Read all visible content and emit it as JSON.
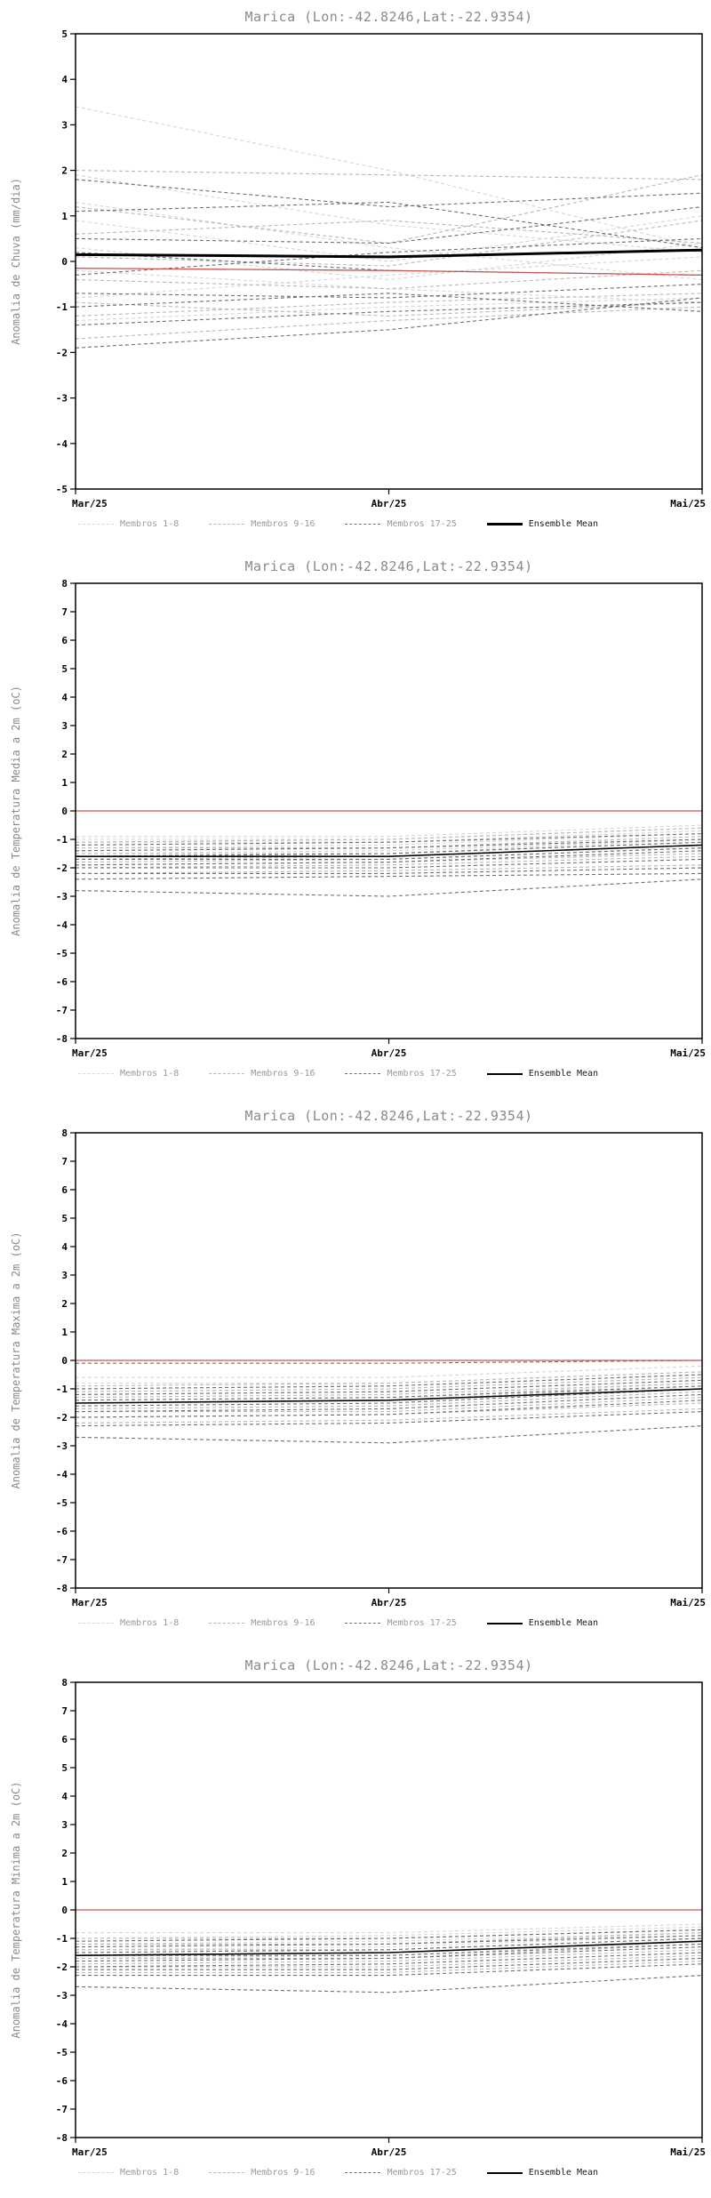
{
  "styles": {
    "background": "#ffffff",
    "axis_color": "#000000",
    "title_color": "#8a8a8a",
    "ylabel_color": "#8a8a8a",
    "legend_text_color": "#9a9a9a",
    "reference_line_color": "#cc544e"
  },
  "chart_data": [
    {
      "type": "line",
      "title": "Marica (Lon:-42.8246,Lat:-22.9354)",
      "ylabel": "Anomalia de Chuva (mm/dia)",
      "ylim": [
        -5,
        5
      ],
      "ytick_step": 1,
      "x_labels": [
        "Mar/25",
        "Abr/25",
        "Mai/25"
      ],
      "legend": [
        {
          "label": "Membros 1-8",
          "color": "#d6d6d6",
          "count": 8,
          "dash": true,
          "width": 1
        },
        {
          "label": "Membros 9-16",
          "color": "#b8b8b8",
          "count": 8,
          "dash": true,
          "width": 1
        },
        {
          "label": "Membros 17-25",
          "color": "#6f6f6f",
          "count": 9,
          "dash": true,
          "width": 1
        },
        {
          "label": "Ensemble Mean",
          "color": "#000000",
          "dash": false,
          "width": 3
        }
      ],
      "members": [
        [
          3.4,
          2.0,
          0.3
        ],
        [
          1.9,
          0.8,
          0.2
        ],
        [
          1.3,
          0.3,
          -0.4
        ],
        [
          0.9,
          0.0,
          1.0
        ],
        [
          0.3,
          -0.4,
          0.4
        ],
        [
          -0.2,
          -0.6,
          -0.9
        ],
        [
          -0.8,
          -0.3,
          0.1
        ],
        [
          -1.3,
          -1.0,
          -0.8
        ],
        [
          2.0,
          1.9,
          1.8
        ],
        [
          1.2,
          0.4,
          1.9
        ],
        [
          0.6,
          0.9,
          0.4
        ],
        [
          0.1,
          -0.1,
          0.9
        ],
        [
          -0.4,
          -0.6,
          -0.2
        ],
        [
          -0.9,
          -1.2,
          -0.9
        ],
        [
          -1.2,
          -0.9,
          -0.7
        ],
        [
          -1.7,
          -1.3,
          -1.0
        ],
        [
          1.8,
          1.2,
          1.5
        ],
        [
          1.1,
          1.3,
          0.3
        ],
        [
          0.5,
          0.4,
          1.2
        ],
        [
          0.2,
          -0.2,
          -0.3
        ],
        [
          -0.3,
          0.2,
          0.5
        ],
        [
          -0.7,
          -0.8,
          -0.5
        ],
        [
          -1.0,
          -0.7,
          -1.1
        ],
        [
          -1.4,
          -1.1,
          -0.9
        ],
        [
          -1.9,
          -1.5,
          -0.8
        ]
      ],
      "ensemble_mean": {
        "color": "#000000",
        "width": 3,
        "values": [
          0.15,
          0.1,
          0.25
        ]
      },
      "reference_line": {
        "color": "#cc544e",
        "width": 1.3,
        "values": [
          -0.15,
          -0.2,
          -0.3
        ]
      }
    },
    {
      "type": "line",
      "title": "Marica (Lon:-42.8246,Lat:-22.9354)",
      "ylabel": "Anomalia de Temperatura Media a 2m (oC)",
      "ylim": [
        -8,
        8
      ],
      "ytick_step": 1,
      "x_labels": [
        "Mar/25",
        "Abr/25",
        "Mai/25"
      ],
      "legend": [
        {
          "label": "Membros 1-8",
          "color": "#d6d6d6",
          "count": 8,
          "dash": true,
          "width": 1
        },
        {
          "label": "Membros 9-16",
          "color": "#b8b8b8",
          "count": 8,
          "dash": true,
          "width": 1
        },
        {
          "label": "Membros 17-25",
          "color": "#6f6f6f",
          "count": 9,
          "dash": true,
          "width": 1
        },
        {
          "label": "Ensemble Mean",
          "color": "#000000",
          "dash": false,
          "width": 2
        }
      ],
      "members": [
        [
          -0.9,
          -0.9,
          -0.5
        ],
        [
          -1.0,
          -1.0,
          -0.6
        ],
        [
          -1.1,
          -1.1,
          -0.7
        ],
        [
          -1.2,
          -1.1,
          -0.7
        ],
        [
          -1.3,
          -1.2,
          -0.8
        ],
        [
          -1.4,
          -1.3,
          -0.9
        ],
        [
          -1.5,
          -1.4,
          -1.0
        ],
        [
          -1.6,
          -1.5,
          -1.0
        ],
        [
          -1.1,
          -1.0,
          -0.6
        ],
        [
          -1.3,
          -1.3,
          -0.9
        ],
        [
          -1.5,
          -1.5,
          -1.1
        ],
        [
          -1.7,
          -1.6,
          -1.2
        ],
        [
          -1.8,
          -1.7,
          -1.3
        ],
        [
          -1.9,
          -1.8,
          -1.5
        ],
        [
          -2.0,
          -1.9,
          -1.6
        ],
        [
          -2.2,
          -2.1,
          -1.9
        ],
        [
          -1.2,
          -1.1,
          -0.8
        ],
        [
          -1.4,
          -1.3,
          -1.0
        ],
        [
          -1.6,
          -1.5,
          -1.1
        ],
        [
          -1.7,
          -1.7,
          -1.3
        ],
        [
          -1.9,
          -1.8,
          -1.4
        ],
        [
          -2.0,
          -2.0,
          -1.7
        ],
        [
          -2.2,
          -2.2,
          -2.0
        ],
        [
          -2.4,
          -2.3,
          -2.2
        ],
        [
          -2.8,
          -3.0,
          -2.4
        ]
      ],
      "ensemble_mean": {
        "color": "#000000",
        "width": 1.6,
        "values": [
          -1.6,
          -1.6,
          -1.2
        ]
      },
      "reference_line": {
        "color": "#cc544e",
        "width": 1.3,
        "values": [
          0,
          0,
          0
        ]
      }
    },
    {
      "type": "line",
      "title": "Marica (Lon:-42.8246,Lat:-22.9354)",
      "ylabel": "Anomalia de Temperatura Maxima a 2m (oC)",
      "ylim": [
        -8,
        8
      ],
      "ytick_step": 1,
      "x_labels": [
        "Mar/25",
        "Abr/25",
        "Mai/25"
      ],
      "legend": [
        {
          "label": "Membros 1-8",
          "color": "#d6d6d6",
          "count": 8,
          "dash": true,
          "width": 1
        },
        {
          "label": "Membros 9-16",
          "color": "#b8b8b8",
          "count": 8,
          "dash": true,
          "width": 1
        },
        {
          "label": "Membros 17-25",
          "color": "#6f6f6f",
          "count": 9,
          "dash": true,
          "width": 1
        },
        {
          "label": "Ensemble Mean",
          "color": "#000000",
          "dash": false,
          "width": 2
        }
      ],
      "members": [
        [
          -0.6,
          -0.6,
          -0.2
        ],
        [
          -0.8,
          -0.8,
          -0.4
        ],
        [
          -1.0,
          -0.9,
          -0.5
        ],
        [
          -1.1,
          -1.0,
          -0.6
        ],
        [
          -1.2,
          -1.1,
          -0.7
        ],
        [
          -1.4,
          -1.3,
          -0.8
        ],
        [
          -1.5,
          -1.4,
          -1.0
        ],
        [
          -1.7,
          -1.6,
          -1.1
        ],
        [
          -0.9,
          -0.8,
          -0.4
        ],
        [
          -1.1,
          -1.0,
          -0.6
        ],
        [
          -1.3,
          -1.2,
          -0.8
        ],
        [
          -1.5,
          -1.4,
          -0.9
        ],
        [
          -1.7,
          -1.6,
          -1.1
        ],
        [
          -1.8,
          -1.8,
          -1.3
        ],
        [
          -2.0,
          -1.9,
          -1.5
        ],
        [
          -2.2,
          -2.1,
          -1.7
        ],
        [
          -0.1,
          -0.1,
          0.0
        ],
        [
          -1.0,
          -0.9,
          -0.5
        ],
        [
          -1.2,
          -1.1,
          -0.7
        ],
        [
          -1.4,
          -1.3,
          -0.9
        ],
        [
          -1.6,
          -1.5,
          -1.0
        ],
        [
          -1.8,
          -1.7,
          -1.2
        ],
        [
          -2.0,
          -1.9,
          -1.4
        ],
        [
          -2.3,
          -2.2,
          -1.8
        ],
        [
          -2.7,
          -2.9,
          -2.3
        ]
      ],
      "ensemble_mean": {
        "color": "#000000",
        "width": 1.6,
        "values": [
          -1.5,
          -1.4,
          -1.0
        ]
      },
      "reference_line": {
        "color": "#cc544e",
        "width": 1.3,
        "values": [
          0,
          0,
          0
        ]
      }
    },
    {
      "type": "line",
      "title": "Marica (Lon:-42.8246,Lat:-22.9354)",
      "ylabel": "Anomalia de Temperatura Minima a 2m (oC)",
      "ylim": [
        -8,
        8
      ],
      "ytick_step": 1,
      "x_labels": [
        "Mar/25",
        "Abr/25",
        "Mai/25"
      ],
      "legend": [
        {
          "label": "Membros 1-8",
          "color": "#d6d6d6",
          "count": 8,
          "dash": true,
          "width": 1
        },
        {
          "label": "Membros 9-16",
          "color": "#b8b8b8",
          "count": 8,
          "dash": true,
          "width": 1
        },
        {
          "label": "Membros 17-25",
          "color": "#6f6f6f",
          "count": 9,
          "dash": true,
          "width": 1
        },
        {
          "label": "Ensemble Mean",
          "color": "#000000",
          "dash": false,
          "width": 2
        }
      ],
      "members": [
        [
          -0.8,
          -0.8,
          -0.5
        ],
        [
          -1.0,
          -0.9,
          -0.6
        ],
        [
          -1.1,
          -1.0,
          -0.7
        ],
        [
          -1.2,
          -1.1,
          -0.8
        ],
        [
          -1.3,
          -1.2,
          -0.8
        ],
        [
          -1.4,
          -1.3,
          -0.9
        ],
        [
          -1.5,
          -1.4,
          -1.0
        ],
        [
          -1.7,
          -1.6,
          -1.1
        ],
        [
          -1.0,
          -1.0,
          -0.7
        ],
        [
          -1.2,
          -1.2,
          -0.8
        ],
        [
          -1.4,
          -1.4,
          -1.0
        ],
        [
          -1.6,
          -1.5,
          -1.1
        ],
        [
          -1.7,
          -1.7,
          -1.2
        ],
        [
          -1.9,
          -1.8,
          -1.4
        ],
        [
          -2.0,
          -2.0,
          -1.6
        ],
        [
          -2.2,
          -2.2,
          -1.8
        ],
        [
          -1.1,
          -1.0,
          -0.7
        ],
        [
          -1.3,
          -1.2,
          -0.9
        ],
        [
          -1.5,
          -1.4,
          -1.0
        ],
        [
          -1.6,
          -1.6,
          -1.2
        ],
        [
          -1.8,
          -1.7,
          -1.3
        ],
        [
          -2.0,
          -1.9,
          -1.5
        ],
        [
          -2.1,
          -2.1,
          -1.7
        ],
        [
          -2.3,
          -2.3,
          -1.9
        ],
        [
          -2.7,
          -2.9,
          -2.3
        ]
      ],
      "ensemble_mean": {
        "color": "#000000",
        "width": 1.6,
        "values": [
          -1.6,
          -1.5,
          -1.1
        ]
      },
      "reference_line": {
        "color": "#cc544e",
        "width": 1.3,
        "values": [
          0,
          0,
          0
        ]
      }
    }
  ]
}
